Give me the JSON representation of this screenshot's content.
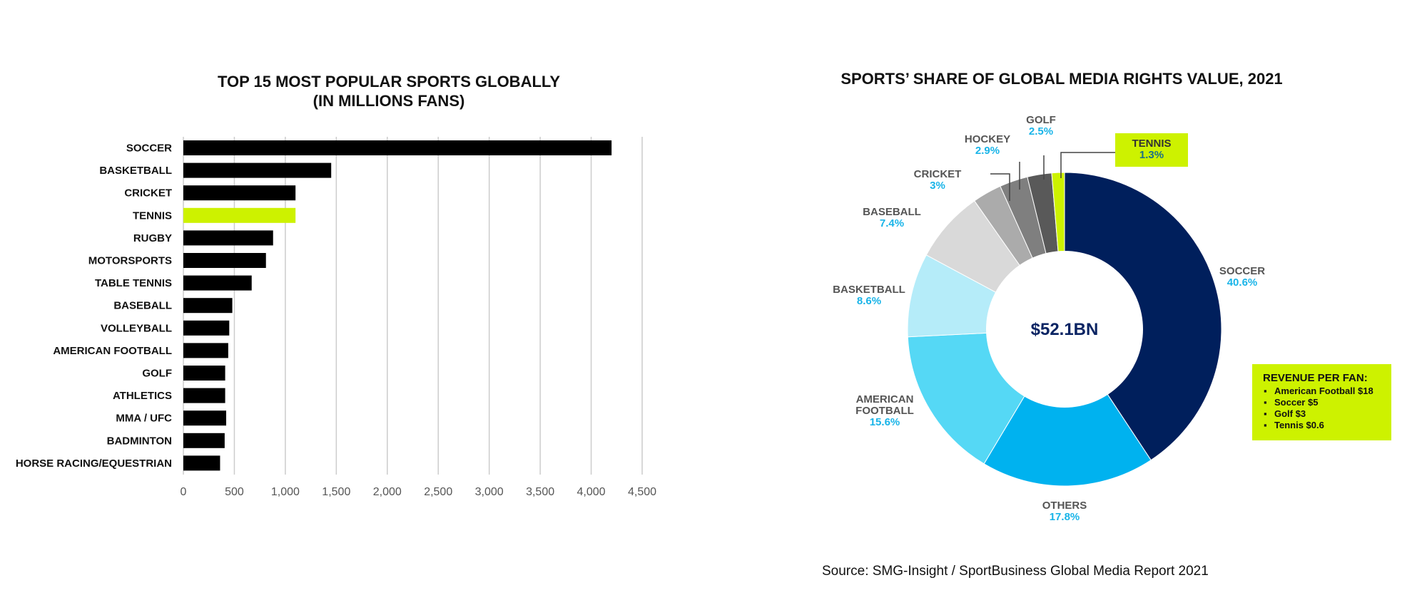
{
  "chart_data": [
    {
      "type": "bar",
      "orientation": "horizontal",
      "title_lines": [
        "TOP 15 MOST POPULAR SPORTS GLOBALLY",
        "(IN MILLIONS FANS)"
      ],
      "categories": [
        "SOCCER",
        "BASKETBALL",
        "CRICKET",
        "TENNIS",
        "RUGBY",
        "MOTORSPORTS",
        "TABLE TENNIS",
        "BASEBALL",
        "VOLLEYBALL",
        "AMERICAN FOOTBALL",
        "GOLF",
        "ATHLETICS",
        "MMA / UFC",
        "BADMINTON",
        "HORSE RACING/EQUESTRIAN"
      ],
      "values": [
        4200,
        1450,
        1100,
        1100,
        880,
        810,
        670,
        480,
        450,
        440,
        410,
        410,
        420,
        405,
        360
      ],
      "highlight_index": 3,
      "xlim": [
        0,
        4500
      ],
      "xticks": [
        0,
        500,
        1000,
        1500,
        2000,
        2500,
        3000,
        3500,
        4000,
        4500
      ],
      "xtick_labels": [
        "0",
        "500",
        "1,000",
        "1,500",
        "2,000",
        "2,500",
        "3,000",
        "3,500",
        "4,000",
        "4,500"
      ],
      "grid": true,
      "colors": {
        "bar": "#000000",
        "highlight": "#cdf200",
        "grid": "#cccccc"
      }
    },
    {
      "type": "pie",
      "variant": "donut",
      "title": "SPORTS’ SHARE OF GLOBAL MEDIA RIGHTS VALUE, 2021",
      "center_label": "$52.1BN",
      "slices": [
        {
          "name": "SOCCER",
          "value": 40.6,
          "value_label": "40.6%",
          "color": "#001f5c"
        },
        {
          "name": "OTHERS",
          "value": 17.8,
          "value_label": "17.8%",
          "color": "#00b2ef"
        },
        {
          "name_lines": [
            "AMERICAN",
            "FOOTBALL"
          ],
          "value": 15.6,
          "value_label": "15.6%",
          "color": "#55d8f5"
        },
        {
          "name": "BASKETBALL",
          "value": 8.6,
          "value_label": "8.6%",
          "color": "#b5ecf9"
        },
        {
          "name": "BASEBALL",
          "value": 7.4,
          "value_label": "7.4%",
          "color": "#d9d9d9"
        },
        {
          "name": "CRICKET",
          "value": 3,
          "value_label": "3%",
          "color": "#ababab"
        },
        {
          "name": "HOCKEY",
          "value": 2.9,
          "value_label": "2.9%",
          "color": "#7f7f7f"
        },
        {
          "name": "GOLF",
          "value": 2.5,
          "value_label": "2.5%",
          "color": "#595959"
        },
        {
          "name": "TENNIS",
          "value": 1.3,
          "value_label": "1.3%",
          "color": "#cdf200"
        }
      ]
    }
  ],
  "revenue_box": {
    "title": "REVENUE PER FAN:",
    "items": [
      "American Football $18",
      "Soccer $5",
      "Golf $3",
      "Tennis $0.6"
    ],
    "bullet": "▪",
    "color": "#cdf200"
  },
  "source": "Source: SMG-Insight / SportBusiness Global Media Report 2021"
}
